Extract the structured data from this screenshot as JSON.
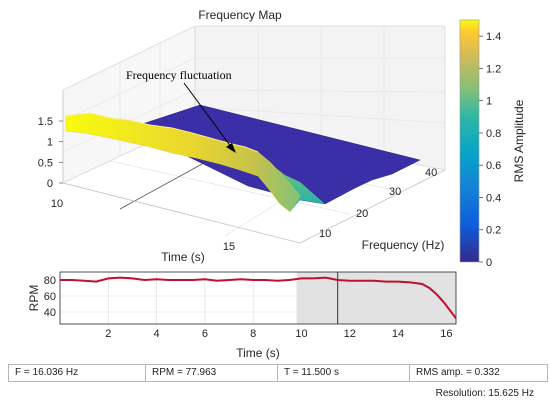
{
  "chart_data": [
    {
      "type": "surface",
      "title": "Frequency Map",
      "xlabel": "Time (s)",
      "ylabel": "Frequency (Hz)",
      "zlabel": "",
      "x_ticks": [
        "10",
        "15"
      ],
      "y_ticks": [
        "10",
        "20",
        "30",
        "40"
      ],
      "z_ticks": [
        "0",
        "0.5",
        "1",
        "1.5"
      ],
      "zlim": [
        0,
        1.5
      ],
      "colorbar": {
        "label": "RMS Amplitude",
        "ticks": [
          "0",
          "0.2",
          "0.4",
          "0.6",
          "0.8",
          "1",
          "1.2",
          "1.4"
        ],
        "range": [
          0,
          1.5
        ]
      },
      "ridge_profile": {
        "time_s": [
          10,
          11,
          12,
          13,
          14,
          15,
          15.5,
          16,
          16.4
        ],
        "amplitude": [
          1.38,
          1.35,
          1.3,
          1.25,
          1.2,
          1.1,
          0.9,
          0.55,
          0.2
        ]
      },
      "annotation": "Frequency fluctuation"
    },
    {
      "type": "line",
      "xlabel": "Time (s)",
      "ylabel": "RPM",
      "x_ticks": [
        "2",
        "4",
        "6",
        "8",
        "10",
        "12",
        "14",
        "16"
      ],
      "y_ticks": [
        "40",
        "60",
        "80"
      ],
      "xlim": [
        0,
        16.4
      ],
      "ylim": [
        25,
        90
      ],
      "highlight_range": [
        9.8,
        16.4
      ],
      "cursor_x": 11.5,
      "series": [
        {
          "x": [
            0,
            0.5,
            1,
            1.5,
            2,
            2.5,
            3,
            3.5,
            4,
            4.5,
            5,
            5.5,
            6,
            6.5,
            7,
            7.5,
            8,
            8.5,
            9,
            9.5,
            10,
            10.5,
            11,
            11.5,
            12,
            12.5,
            13,
            13.5,
            14,
            14.5,
            15,
            15.3,
            15.6,
            15.9,
            16.2,
            16.4
          ],
          "y": [
            80,
            80,
            79,
            78,
            82,
            83,
            82,
            80,
            81,
            80,
            80,
            80,
            81,
            79,
            80,
            81,
            80,
            80,
            79,
            80,
            82,
            82,
            83,
            80,
            79,
            79,
            79,
            78,
            78,
            77,
            75,
            70,
            62,
            52,
            40,
            32
          ]
        }
      ]
    }
  ],
  "status": {
    "freq": "F = 16.036 Hz",
    "rpm": "RPM = 77.963",
    "time": "T = 11.500 s",
    "rms": "RMS amp. = 0.332"
  },
  "resolution": "Resolution: 15.625 Hz"
}
